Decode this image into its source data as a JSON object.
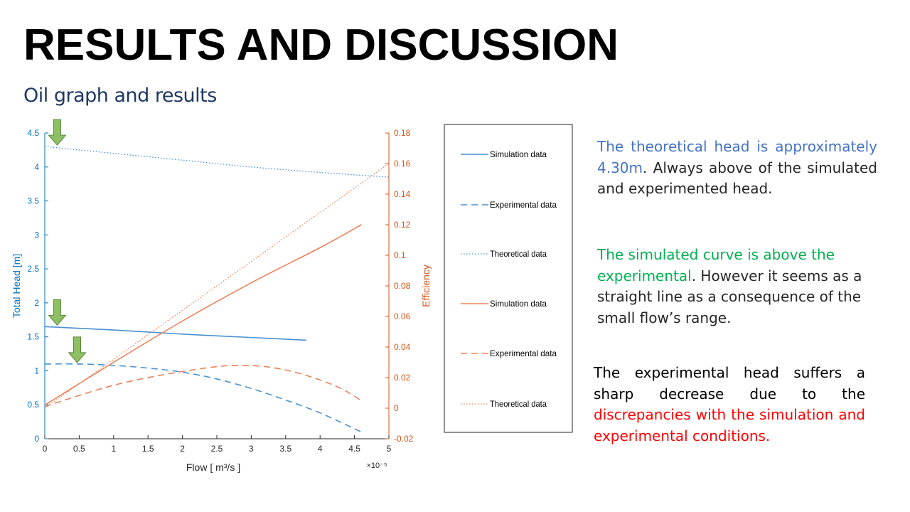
{
  "slide": {
    "title": "RESULTS AND DISCUSSION",
    "subtitle": "Oil graph and results"
  },
  "paragraphs": {
    "p1": {
      "blue_text": "The theoretical head is approximately 4.30m",
      "rest_text": ". Always above of the simulated and experimented head."
    },
    "p2": {
      "green_text": "The simulated curve is above the experimental",
      "rest_text": ". However it seems as a straight line as a consequence of the small flow’s range."
    },
    "p3": {
      "lead_text": "The experimental head suffers a sharp decrease due to the ",
      "red_text": "discrepancies with the simulation and experimental conditions."
    }
  },
  "colors": {
    "head_axis": "#0072bd",
    "efficiency_axis": "#d95319",
    "head_line": "#4a90d0",
    "efficiency_line": "#e8825a",
    "arrow_fill": "#8fbf64",
    "arrow_stroke": "#5a8a38",
    "p1_accent": "#4472c4",
    "p2_accent": "#00b050",
    "p3_accent": "#ff0000"
  },
  "chart_data": {
    "type": "line",
    "xlabel": "Flow  [ m³/s ]",
    "x_multiplier": "×10⁻⁵",
    "xlim": [
      0,
      5
    ],
    "xticks": [
      "0",
      "0.5",
      "1",
      "1.5",
      "2",
      "2.5",
      "3",
      "3.5",
      "4",
      "4.5",
      "5"
    ],
    "ylabel_left": "Total Head [m]",
    "ylim_left": [
      0,
      4.5
    ],
    "yticks_left": [
      "0",
      "0.5",
      "1",
      "1.5",
      "2",
      "2.5",
      "3",
      "3.5",
      "4",
      "4.5"
    ],
    "ylabel_right": "Efficiency",
    "ylim_right": [
      -0.02,
      0.18
    ],
    "yticks_right": [
      "-0.02",
      "0",
      "0.02",
      "0.04",
      "0.06",
      "0.08",
      "0.1",
      "0.12",
      "0.14",
      "0.16",
      "0.18"
    ],
    "grid": false,
    "legend_position": "right",
    "legend": [
      {
        "label": "Simulation data",
        "axis": "left",
        "style": "solid"
      },
      {
        "label": "Experimental data",
        "axis": "left",
        "style": "dashed"
      },
      {
        "label": "Theoretical data",
        "axis": "left",
        "style": "dotted"
      },
      {
        "label": "Simulation data",
        "axis": "right",
        "style": "solid"
      },
      {
        "label": "Experimental data",
        "axis": "right",
        "style": "dashed"
      },
      {
        "label": "Theoretical data",
        "axis": "right",
        "style": "dotted"
      }
    ],
    "series": [
      {
        "axis": "left",
        "style": "solid",
        "x": [
          0,
          1,
          2,
          3,
          3.8
        ],
        "y": [
          1.65,
          1.6,
          1.54,
          1.49,
          1.45
        ]
      },
      {
        "axis": "left",
        "style": "dashed",
        "x": [
          0,
          0.5,
          1,
          1.5,
          2,
          2.5,
          3,
          3.5,
          4,
          4.6
        ],
        "y": [
          1.1,
          1.1,
          1.08,
          1.04,
          0.98,
          0.88,
          0.74,
          0.57,
          0.38,
          0.1
        ]
      },
      {
        "axis": "left",
        "style": "dotted",
        "x": [
          0,
          1,
          2,
          3,
          4,
          5
        ],
        "y": [
          4.3,
          4.2,
          4.1,
          4.0,
          3.92,
          3.85
        ]
      },
      {
        "axis": "right",
        "style": "solid",
        "x": [
          0,
          1,
          2,
          3,
          4,
          4.6
        ],
        "y": [
          0.002,
          0.03,
          0.057,
          0.082,
          0.105,
          0.12
        ]
      },
      {
        "axis": "right",
        "style": "dashed",
        "x": [
          0,
          1,
          2,
          2.8,
          3.5,
          4.2,
          4.6
        ],
        "y": [
          0.001,
          0.015,
          0.024,
          0.028,
          0.025,
          0.015,
          0.005
        ]
      },
      {
        "axis": "right",
        "style": "dotted",
        "x": [
          0,
          5
        ],
        "y": [
          0,
          0.16
        ]
      }
    ],
    "arrows_at": [
      {
        "x": 0.18,
        "y_left": 4.3
      },
      {
        "x": 0.18,
        "y_left": 1.65
      },
      {
        "x": 0.47,
        "y_left": 1.1
      }
    ]
  }
}
